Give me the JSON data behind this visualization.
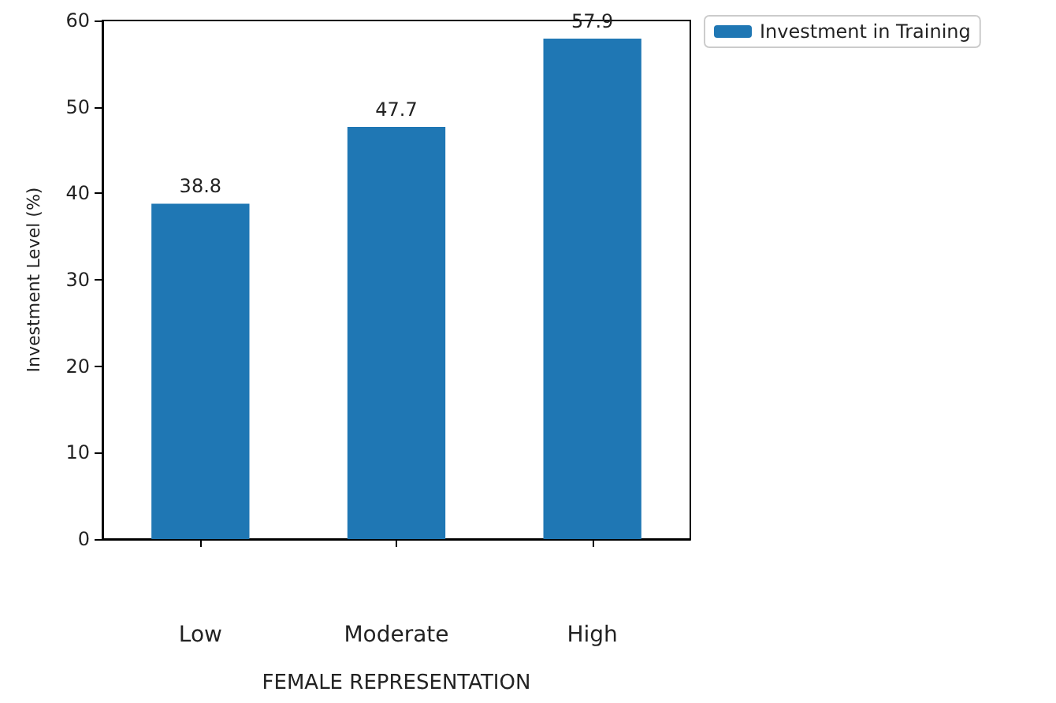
{
  "chart_data": {
    "type": "bar",
    "xlabel": "FEMALE REPRESENTATION",
    "ylabel": "Investment Level (%)",
    "categories": [
      "Low",
      "Moderate",
      "High"
    ],
    "series": [
      {
        "name": "Investment in Training",
        "color": "#1f77b4",
        "values": [
          38.8,
          47.7,
          57.9
        ]
      }
    ],
    "ylim": [
      0,
      60
    ],
    "yticks": [
      0,
      10,
      20,
      30,
      40,
      50,
      60
    ],
    "data_labels": true,
    "grid": false,
    "legend": "top right"
  }
}
